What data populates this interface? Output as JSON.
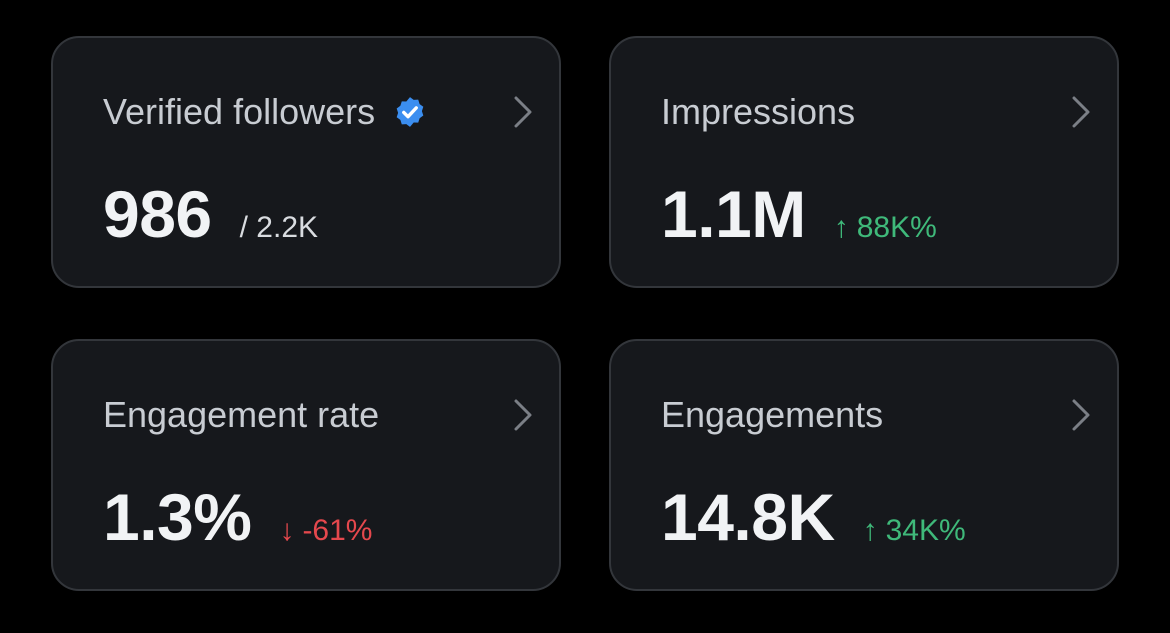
{
  "cards": [
    {
      "title": "Verified followers",
      "value": "986",
      "sub": "/ 2.2K",
      "icon": "verified-badge-icon",
      "badge_color": "#3b8ef0"
    },
    {
      "title": "Impressions",
      "value": "1.1M",
      "delta_arrow": "↑",
      "delta": "88K%",
      "delta_color": "#3fb97a"
    },
    {
      "title": "Engagement rate",
      "value": "1.3%",
      "delta_arrow": "↓",
      "delta": "-61%",
      "delta_color": "#e5484d"
    },
    {
      "title": "Engagements",
      "value": "14.8K",
      "delta_arrow": "↑",
      "delta": "34K%",
      "delta_color": "#3fb97a"
    }
  ],
  "colors": {
    "background": "#000000",
    "card": "#16181c",
    "card_border": "#33363b",
    "positive": "#3fb97a",
    "negative": "#e5484d"
  }
}
